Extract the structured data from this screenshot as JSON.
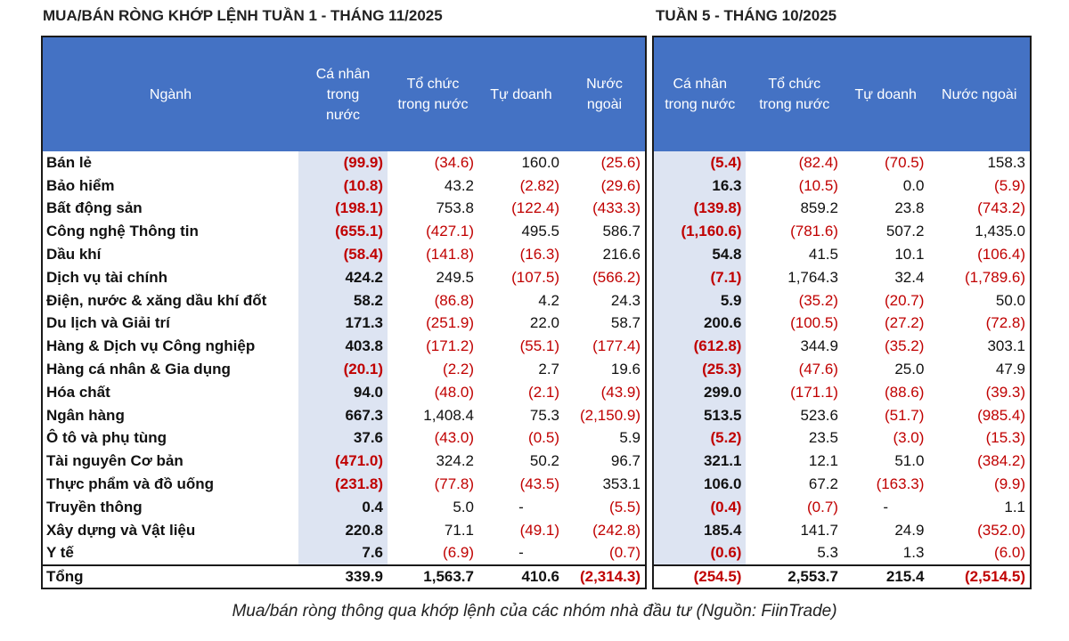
{
  "left": {
    "title": "MUA/BÁN RÒNG KHỚP LỆNH TUẦN 1 - THÁNG 11/2025",
    "headers": [
      "Ngành",
      "Cá nhân\ntrong\nnước",
      "Tổ chức\ntrong nước",
      "Tự doanh",
      "Nước\nngoài"
    ],
    "rows": [
      {
        "sector": "Bán lẻ",
        "values": [
          "(99.9)",
          "(34.6)",
          "160.0",
          "(25.6)"
        ]
      },
      {
        "sector": "Bảo hiểm",
        "values": [
          "(10.8)",
          "43.2",
          "(2.82)",
          "(29.6)"
        ]
      },
      {
        "sector": "Bất động sản",
        "values": [
          "(198.1)",
          "753.8",
          "(122.4)",
          "(433.3)"
        ]
      },
      {
        "sector": "Công nghệ Thông tin",
        "values": [
          "(655.1)",
          "(427.1)",
          "495.5",
          "586.7"
        ]
      },
      {
        "sector": "Dầu khí",
        "values": [
          "(58.4)",
          "(141.8)",
          "(16.3)",
          "216.6"
        ]
      },
      {
        "sector": "Dịch vụ tài chính",
        "values": [
          "424.2",
          "249.5",
          "(107.5)",
          "(566.2)"
        ]
      },
      {
        "sector": "Điện, nước & xăng dầu khí đốt",
        "values": [
          "58.2",
          "(86.8)",
          "4.2",
          "24.3"
        ]
      },
      {
        "sector": "Du lịch và Giải trí",
        "values": [
          "171.3",
          "(251.9)",
          "22.0",
          "58.7"
        ]
      },
      {
        "sector": "Hàng & Dịch vụ Công nghiệp",
        "values": [
          "403.8",
          "(171.2)",
          "(55.1)",
          "(177.4)"
        ]
      },
      {
        "sector": "Hàng cá nhân & Gia dụng",
        "values": [
          "(20.1)",
          "(2.2)",
          "2.7",
          "19.6"
        ]
      },
      {
        "sector": "Hóa chất",
        "values": [
          "94.0",
          "(48.0)",
          "(2.1)",
          "(43.9)"
        ]
      },
      {
        "sector": "Ngân hàng",
        "values": [
          "667.3",
          "1,408.4",
          "75.3",
          "(2,150.9)"
        ]
      },
      {
        "sector": "Ô tô và phụ tùng",
        "values": [
          "37.6",
          "(43.0)",
          "(0.5)",
          "5.9"
        ]
      },
      {
        "sector": "Tài nguyên Cơ bản",
        "values": [
          "(471.0)",
          "324.2",
          "50.2",
          "96.7"
        ]
      },
      {
        "sector": "Thực phẩm và đồ uống",
        "values": [
          "(231.8)",
          "(77.8)",
          "(43.5)",
          "353.1"
        ]
      },
      {
        "sector": "Truyền thông",
        "values": [
          "0.4",
          "5.0",
          "-",
          "(5.5)"
        ]
      },
      {
        "sector": "Xây dựng và Vật liệu",
        "values": [
          "220.8",
          "71.1",
          "(49.1)",
          "(242.8)"
        ]
      },
      {
        "sector": "Y tế",
        "values": [
          "7.6",
          "(6.9)",
          "-",
          "(0.7)"
        ]
      },
      {
        "sector": "Tổng",
        "values": [
          "339.9",
          "1,563.7",
          "410.6",
          "(2,314.3)"
        ],
        "total": true
      }
    ]
  },
  "right": {
    "title": "TUẦN 5 - THÁNG 10/2025",
    "headers": [
      "Cá nhân\ntrong nước",
      "Tổ chức\ntrong nước",
      "Tự doanh",
      "Nước ngoài"
    ],
    "rows": [
      {
        "values": [
          "(5.4)",
          "(82.4)",
          "(70.5)",
          "158.3"
        ]
      },
      {
        "values": [
          "16.3",
          "(10.5)",
          "0.0",
          "(5.9)"
        ]
      },
      {
        "values": [
          "(139.8)",
          "859.2",
          "23.8",
          "(743.2)"
        ]
      },
      {
        "values": [
          "(1,160.6)",
          "(781.6)",
          "507.2",
          "1,435.0"
        ]
      },
      {
        "values": [
          "54.8",
          "41.5",
          "10.1",
          "(106.4)"
        ]
      },
      {
        "values": [
          "(7.1)",
          "1,764.3",
          "32.4",
          "(1,789.6)"
        ]
      },
      {
        "values": [
          "5.9",
          "(35.2)",
          "(20.7)",
          "50.0"
        ]
      },
      {
        "values": [
          "200.6",
          "(100.5)",
          "(27.2)",
          "(72.8)"
        ]
      },
      {
        "values": [
          "(612.8)",
          "344.9",
          "(35.2)",
          "303.1"
        ]
      },
      {
        "values": [
          "(25.3)",
          "(47.6)",
          "25.0",
          "47.9"
        ]
      },
      {
        "values": [
          "299.0",
          "(171.1)",
          "(88.6)",
          "(39.3)"
        ]
      },
      {
        "values": [
          "513.5",
          "523.6",
          "(51.7)",
          "(985.4)"
        ]
      },
      {
        "values": [
          "(5.2)",
          "23.5",
          "(3.0)",
          "(15.3)"
        ]
      },
      {
        "values": [
          "321.1",
          "12.1",
          "51.0",
          "(384.2)"
        ]
      },
      {
        "values": [
          "106.0",
          "67.2",
          "(163.3)",
          "(9.9)"
        ]
      },
      {
        "values": [
          "(0.4)",
          "(0.7)",
          "-",
          "1.1"
        ]
      },
      {
        "values": [
          "185.4",
          "141.7",
          "24.9",
          "(352.0)"
        ]
      },
      {
        "values": [
          "(0.6)",
          "5.3",
          "1.3",
          "(6.0)"
        ]
      },
      {
        "values": [
          "(254.5)",
          "2,553.7",
          "215.4",
          "(2,514.5)"
        ],
        "total": true
      }
    ]
  },
  "caption": "Mua/bán ròng thông qua khớp lệnh của các nhóm nhà đầu tư (Nguồn: FiinTrade)",
  "colors": {
    "header_bg": "#4472c4",
    "negative": "#c00000",
    "highlight_col": "#dde4f2"
  }
}
